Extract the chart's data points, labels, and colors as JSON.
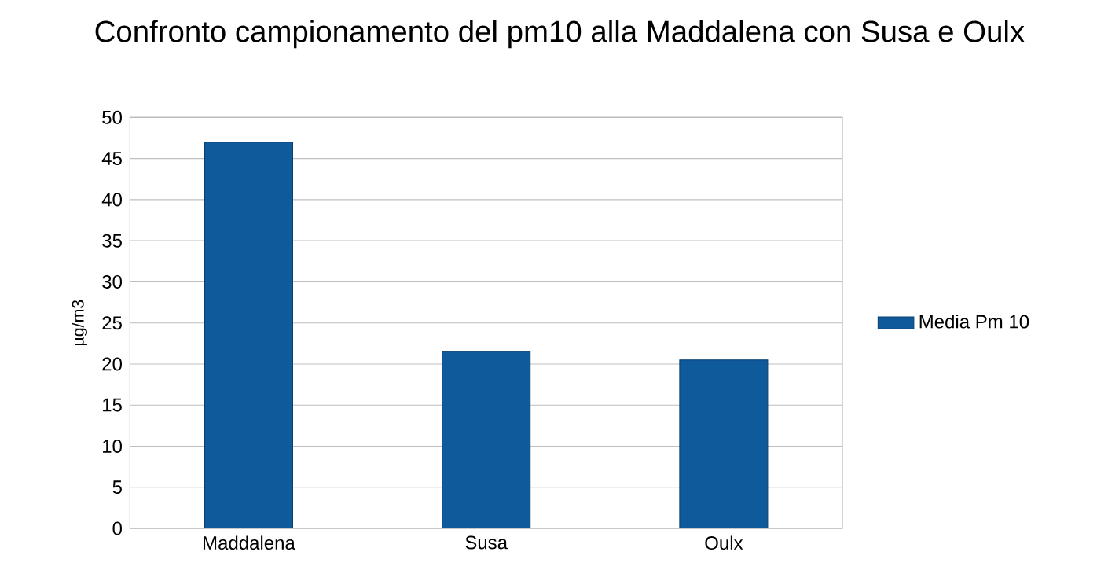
{
  "chart_data": {
    "type": "bar",
    "title": "Confronto campionamento del pm10 alla Maddalena con Susa e Oulx",
    "ylabel": "µg/m3",
    "categories": [
      "Maddalena",
      "Susa",
      "Oulx"
    ],
    "series": [
      {
        "name": "Media Pm 10",
        "color": "#0f5a9a",
        "values": [
          47,
          21.5,
          20.5
        ]
      }
    ],
    "ylim": [
      0,
      50
    ],
    "yticks": [
      0,
      5,
      10,
      15,
      20,
      25,
      30,
      35,
      40,
      45,
      50
    ],
    "grid": "y",
    "legend": "right"
  }
}
